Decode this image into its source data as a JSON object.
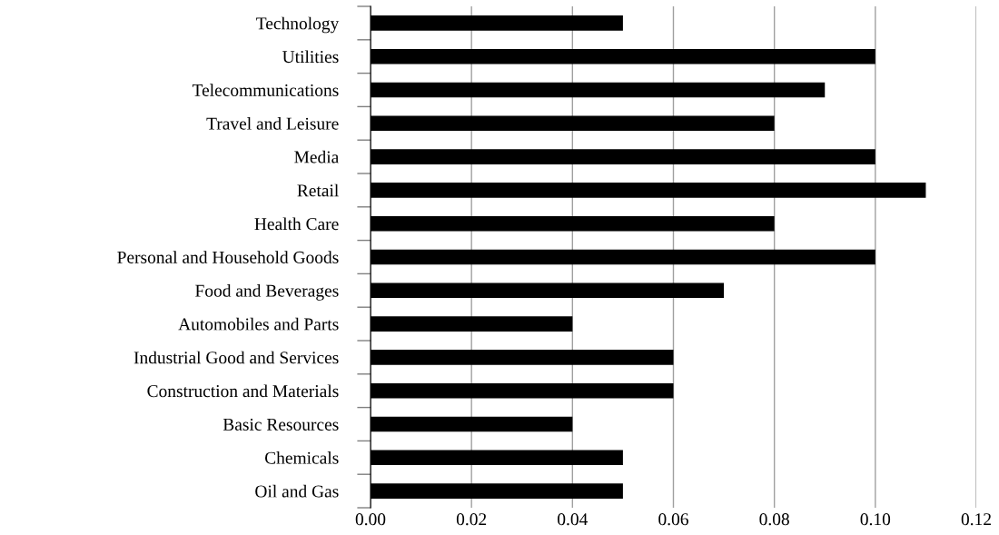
{
  "chart_data": {
    "type": "bar",
    "orientation": "horizontal",
    "categories": [
      "Technology",
      "Utilities",
      "Telecommunications",
      "Travel and Leisure",
      "Media",
      "Retail",
      "Health Care",
      "Personal and Household Goods",
      "Food and Beverages",
      "Automobiles and Parts",
      "Industrial Good and Services",
      "Construction and Materials",
      "Basic Resources",
      "Chemicals",
      "Oil and Gas"
    ],
    "values": [
      0.05,
      0.1,
      0.09,
      0.08,
      0.1,
      0.11,
      0.08,
      0.1,
      0.07,
      0.04,
      0.06,
      0.06,
      0.04,
      0.05,
      0.05
    ],
    "color": "#000000",
    "xlim": [
      0,
      0.12
    ],
    "xticks": [
      {
        "value": 0,
        "label": "0.00"
      },
      {
        "value": 0.02,
        "label": "0.02"
      },
      {
        "value": 0.04,
        "label": "0.04"
      },
      {
        "value": 0.06,
        "label": "0.06"
      },
      {
        "value": 0.08,
        "label": "0.08"
      },
      {
        "value": 0.1,
        "label": "0.10"
      },
      {
        "value": 0.12,
        "label": "0.12"
      }
    ],
    "grid": "x",
    "legend": false
  }
}
